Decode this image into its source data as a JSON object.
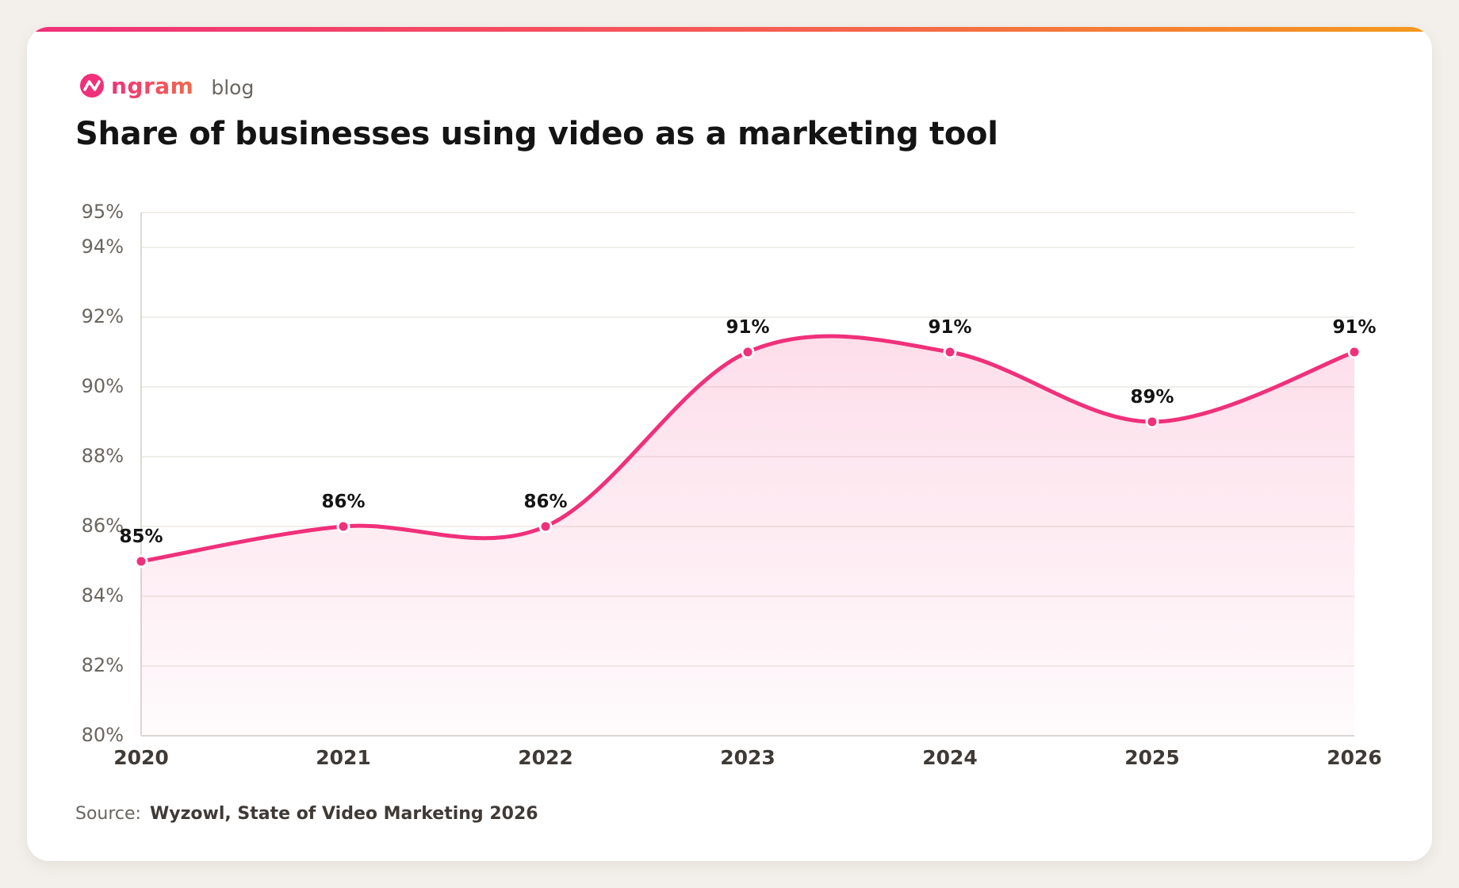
{
  "brand": {
    "name": "ngram",
    "section": "blog"
  },
  "title": "Share of businesses using video as a marketing tool",
  "source": {
    "label": "Source:",
    "value": "Wyzowl, State of Video Marketing 2026"
  },
  "colors": {
    "accent": "#f0307a",
    "fill": "#fde3ec",
    "grid": "#ebe8e4",
    "tick_text": "#6b6560",
    "label_text": "#141414"
  },
  "chart_data": {
    "type": "area",
    "x": [
      "2020",
      "2021",
      "2022",
      "2023",
      "2024",
      "2025",
      "2026"
    ],
    "series": [
      {
        "values": [
          85,
          86,
          86,
          91,
          91,
          89,
          91
        ]
      }
    ],
    "data_labels": [
      "85%",
      "86%",
      "86%",
      "91%",
      "91%",
      "89%",
      "91%"
    ],
    "y_ticks": [
      80,
      82,
      84,
      86,
      88,
      90,
      92,
      94,
      95
    ],
    "y_tick_labels": [
      "80%",
      "82%",
      "84%",
      "86%",
      "88%",
      "90%",
      "92%",
      "94%",
      "95%"
    ],
    "ylim": [
      80,
      95
    ],
    "grid": true,
    "xlabel": "",
    "ylabel": ""
  }
}
